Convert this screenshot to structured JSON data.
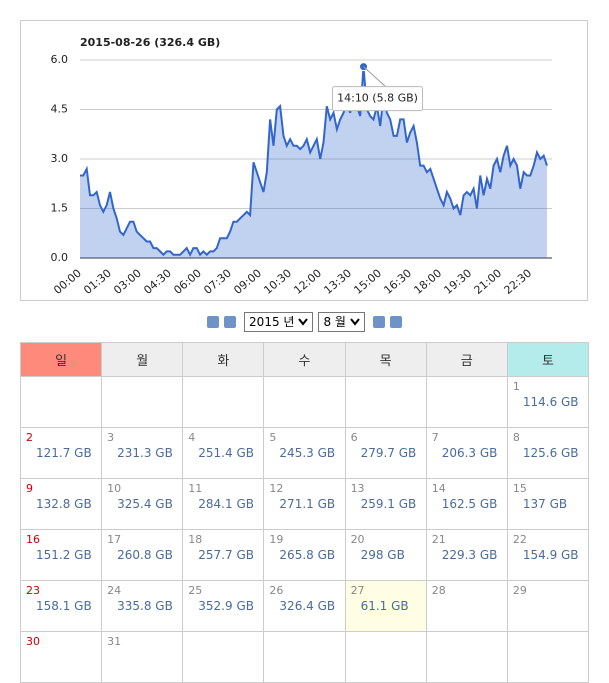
{
  "chart_data": {
    "type": "area",
    "title": "2015-08-26 (326.4 GB)",
    "tooltip": "14:10 (5.8 GB)",
    "categories": [
      "00:00",
      null,
      null,
      null,
      null,
      null,
      null,
      null,
      null,
      "01:30",
      null,
      null,
      null,
      null,
      null,
      null,
      null,
      null,
      "03:00",
      null,
      null,
      null,
      null,
      null,
      null,
      null,
      null,
      "04:30",
      null,
      null,
      null,
      null,
      null,
      null,
      null,
      null,
      "06:00",
      null,
      null,
      null,
      null,
      null,
      null,
      null,
      null,
      "07:30",
      null,
      null,
      null,
      null,
      null,
      null,
      null,
      null,
      "09:00",
      null,
      null,
      null,
      null,
      null,
      null,
      null,
      null,
      "10:30",
      null,
      null,
      null,
      null,
      null,
      null,
      null,
      null,
      "12:00",
      null,
      null,
      null,
      null,
      null,
      null,
      null,
      null,
      "13:30",
      null,
      null,
      null,
      null,
      null,
      null,
      null,
      null,
      "15:00",
      null,
      null,
      null,
      null,
      null,
      null,
      null,
      null,
      "16:30",
      null,
      null,
      null,
      null,
      null,
      null,
      null,
      null,
      "18:00",
      null,
      null,
      null,
      null,
      null,
      null,
      null,
      null,
      "19:30",
      null,
      null,
      null,
      null,
      null,
      null,
      null,
      null,
      "21:00",
      null,
      null,
      null,
      null,
      null,
      null,
      null,
      null,
      "22:30",
      null,
      null,
      null,
      null,
      null
    ],
    "series": [
      {
        "color": "#3366cc",
        "values": [
          2.5,
          2.5,
          2.7,
          1.9,
          1.9,
          2.0,
          1.6,
          1.4,
          1.6,
          2.0,
          1.5,
          1.2,
          0.8,
          0.7,
          0.9,
          1.1,
          1.1,
          0.8,
          0.7,
          0.6,
          0.5,
          0.5,
          0.3,
          0.3,
          0.2,
          0.1,
          0.2,
          0.2,
          0.1,
          0.1,
          0.1,
          0.2,
          0.3,
          0.1,
          0.3,
          0.3,
          0.1,
          0.2,
          0.1,
          0.2,
          0.2,
          0.3,
          0.6,
          0.6,
          0.6,
          0.8,
          1.1,
          1.1,
          1.2,
          1.3,
          1.4,
          1.3,
          2.9,
          2.6,
          2.3,
          2.0,
          2.6,
          4.2,
          3.4,
          4.5,
          4.6,
          3.7,
          3.4,
          3.6,
          3.4,
          3.4,
          3.3,
          3.4,
          3.6,
          3.2,
          3.4,
          3.6,
          3.0,
          3.5,
          4.6,
          4.2,
          4.4,
          3.9,
          4.2,
          4.4,
          4.7,
          4.4,
          5.0,
          4.6,
          4.3,
          5.8,
          4.5,
          4.3,
          4.2,
          4.6,
          4.0,
          4.9,
          4.4,
          4.2,
          3.7,
          3.7,
          4.2,
          4.2,
          3.5,
          3.8,
          4.0,
          3.5,
          2.8,
          2.8,
          2.6,
          2.7,
          2.4,
          2.1,
          1.8,
          1.6,
          2.0,
          1.8,
          1.5,
          1.6,
          1.3,
          1.9,
          2.0,
          1.9,
          2.1,
          1.5,
          2.5,
          1.9,
          2.4,
          2.1,
          2.8,
          3.0,
          2.6,
          3.1,
          3.4,
          2.8,
          3.0,
          2.8,
          2.1,
          2.6,
          2.5,
          2.5,
          2.8,
          3.2,
          3.0,
          3.1,
          2.8
        ]
      }
    ],
    "ylim": [
      0,
      6
    ],
    "yticks": [
      {
        "value": 0,
        "label": "0.0"
      },
      1.5,
      {
        "value": 3,
        "label": "3.0"
      },
      4.5,
      {
        "value": 6,
        "label": "6.0"
      }
    ],
    "grid": true
  },
  "nav": {
    "year": "2015 년",
    "month": "8 월"
  },
  "calendar": {
    "headers": [
      "일",
      "월",
      "화",
      "수",
      "목",
      "금",
      "토"
    ],
    "weeks": [
      [
        null,
        null,
        null,
        null,
        null,
        null,
        {
          "day": 1,
          "usage": "114.6 GB"
        }
      ],
      [
        {
          "day": 2,
          "usage": "121.7 GB"
        },
        {
          "day": 3,
          "usage": "231.3 GB"
        },
        {
          "day": 4,
          "usage": "251.4 GB"
        },
        {
          "day": 5,
          "usage": "245.3 GB"
        },
        {
          "day": 6,
          "usage": "279.7 GB"
        },
        {
          "day": 7,
          "usage": "206.3 GB"
        },
        {
          "day": 8,
          "usage": "125.6 GB"
        }
      ],
      [
        {
          "day": 9,
          "usage": "132.8 GB"
        },
        {
          "day": 10,
          "usage": "325.4 GB"
        },
        {
          "day": 11,
          "usage": "284.1 GB"
        },
        {
          "day": 12,
          "usage": "271.1 GB"
        },
        {
          "day": 13,
          "usage": "259.1 GB"
        },
        {
          "day": 14,
          "usage": "162.5 GB"
        },
        {
          "day": 15,
          "usage": "137 GB"
        }
      ],
      [
        {
          "day": 16,
          "usage": "151.2 GB"
        },
        {
          "day": 17,
          "usage": "260.8 GB"
        },
        {
          "day": 18,
          "usage": "257.7 GB"
        },
        {
          "day": 19,
          "usage": "265.8 GB"
        },
        {
          "day": 20,
          "usage": "298 GB"
        },
        {
          "day": 21,
          "usage": "229.3 GB"
        },
        {
          "day": 22,
          "usage": "154.9 GB"
        }
      ],
      [
        {
          "day": 23,
          "usage": "158.1 GB"
        },
        {
          "day": 24,
          "usage": "335.8 GB"
        },
        {
          "day": 25,
          "usage": "352.9 GB"
        },
        {
          "day": 26,
          "usage": "326.4 GB"
        },
        {
          "day": 27,
          "usage": "61.1 GB",
          "highlight": true
        },
        {
          "day": 28
        },
        {
          "day": 29
        }
      ],
      [
        {
          "day": 30
        },
        {
          "day": 31
        },
        null,
        null,
        null,
        null,
        null
      ]
    ]
  }
}
